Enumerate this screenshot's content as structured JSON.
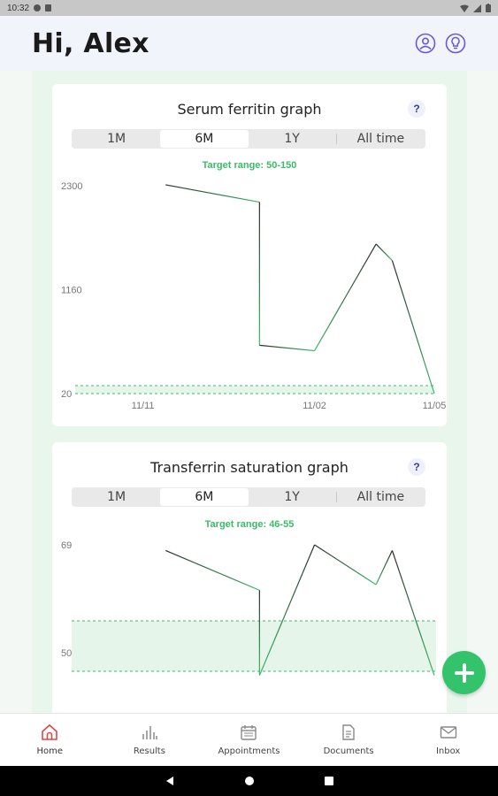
{
  "status": {
    "time": "10:32"
  },
  "header": {
    "greeting": "Hi, Alex"
  },
  "cards": [
    {
      "title": "Serum ferritin graph",
      "help": "?",
      "ranges": [
        "1M",
        "6M",
        "1Y",
        "All time"
      ],
      "selected_range": "6M",
      "target_text": "Target range: 50-150",
      "target_range": [
        50,
        150
      ],
      "line_color": "#2b2b2b",
      "accent_color": "#3cba6a"
    },
    {
      "title": "Transferrin saturation graph",
      "help": "?",
      "ranges": [
        "1M",
        "6M",
        "1Y",
        "All time"
      ],
      "selected_range": "6M",
      "target_text": "Target range: 46-55",
      "target_range": [
        46,
        55
      ],
      "line_color": "#2b2b2b",
      "accent_color": "#3cba6a"
    }
  ],
  "chart_data": [
    {
      "type": "line",
      "title": "Serum ferritin graph",
      "y_ticks": [
        "2300",
        "1160",
        "20"
      ],
      "x_ticks": [
        "11/11",
        "11/02",
        "11/05"
      ],
      "ylim": [
        20,
        2300
      ],
      "target_band": [
        50,
        150
      ],
      "series": [
        {
          "values": [
            2310,
            2120,
            550,
            490,
            1660,
            1480,
            20
          ]
        }
      ],
      "x_positions": [
        0.17,
        0.46,
        0.46,
        0.63,
        0.82,
        0.87,
        1.0
      ]
    },
    {
      "type": "line",
      "title": "Transferrin saturation graph",
      "y_ticks": [
        "69",
        "50"
      ],
      "ylim": [
        50,
        69
      ],
      "target_band": [
        46,
        55
      ],
      "series": [
        {
          "values": [
            68,
            61,
            46,
            69,
            62,
            68,
            46
          ]
        }
      ],
      "x_positions": [
        0.17,
        0.46,
        0.46,
        0.63,
        0.82,
        0.87,
        1.0
      ]
    }
  ],
  "fab": {
    "icon": "plus-icon",
    "color": "#33c46b"
  },
  "nav": {
    "items": [
      {
        "label": "Home",
        "icon": "home-icon",
        "active": true
      },
      {
        "label": "Results",
        "icon": "bar-chart-icon",
        "active": false
      },
      {
        "label": "Appointments",
        "icon": "calendar-icon",
        "active": false
      },
      {
        "label": "Documents",
        "icon": "document-icon",
        "active": false
      },
      {
        "label": "Inbox",
        "icon": "mail-icon",
        "active": false
      }
    ]
  }
}
